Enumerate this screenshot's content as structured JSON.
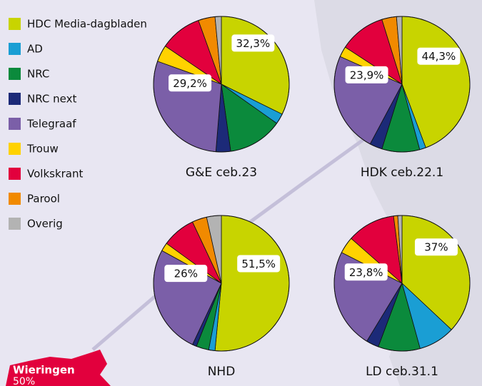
{
  "chart_data": [
    {
      "type": "pie",
      "title": "G&E ceb.23",
      "categories": [
        "HDC Media-dagbladen",
        "AD",
        "NRC",
        "NRC next",
        "Telegraaf",
        "Trouw",
        "Volkskrant",
        "Parool",
        "Overig"
      ],
      "colors": [
        "#c8d400",
        "#1a9ed4",
        "#0b8a3c",
        "#1c2a78",
        "#7b5fa8",
        "#ffd200",
        "#e2003d",
        "#f18a00",
        "#b3b3b3"
      ],
      "values": [
        32.3,
        2.5,
        13,
        3.5,
        29.2,
        4,
        10,
        4,
        1.5
      ],
      "value_labels": [
        "32,3%",
        null,
        null,
        null,
        "29,2%",
        null,
        null,
        null,
        null
      ]
    },
    {
      "type": "pie",
      "title": "HDK ceb.22.1",
      "values": [
        44.3,
        1.5,
        9,
        3,
        23.9,
        2.5,
        11,
        3.5,
        1.3
      ],
      "value_labels": [
        "44,3%",
        null,
        null,
        null,
        "23,9%",
        null,
        null,
        null,
        null
      ]
    },
    {
      "type": "pie",
      "title": "NHD",
      "values": [
        51.5,
        1.5,
        3,
        1,
        26,
        2,
        8,
        3.5,
        3.5
      ],
      "value_labels": [
        "51,5%",
        null,
        null,
        null,
        "26%",
        null,
        null,
        null,
        null
      ],
      "annotations": [
        {
          "text": "Wieringen",
          "label": "50%"
        }
      ]
    },
    {
      "type": "pie",
      "title": "LD ceb.31.1",
      "values": [
        37,
        8.7,
        10,
        3,
        23.8,
        4,
        11.5,
        1,
        1
      ],
      "value_labels": [
        "37%",
        null,
        null,
        null,
        "23,8%",
        null,
        null,
        null,
        null
      ]
    }
  ]
}
